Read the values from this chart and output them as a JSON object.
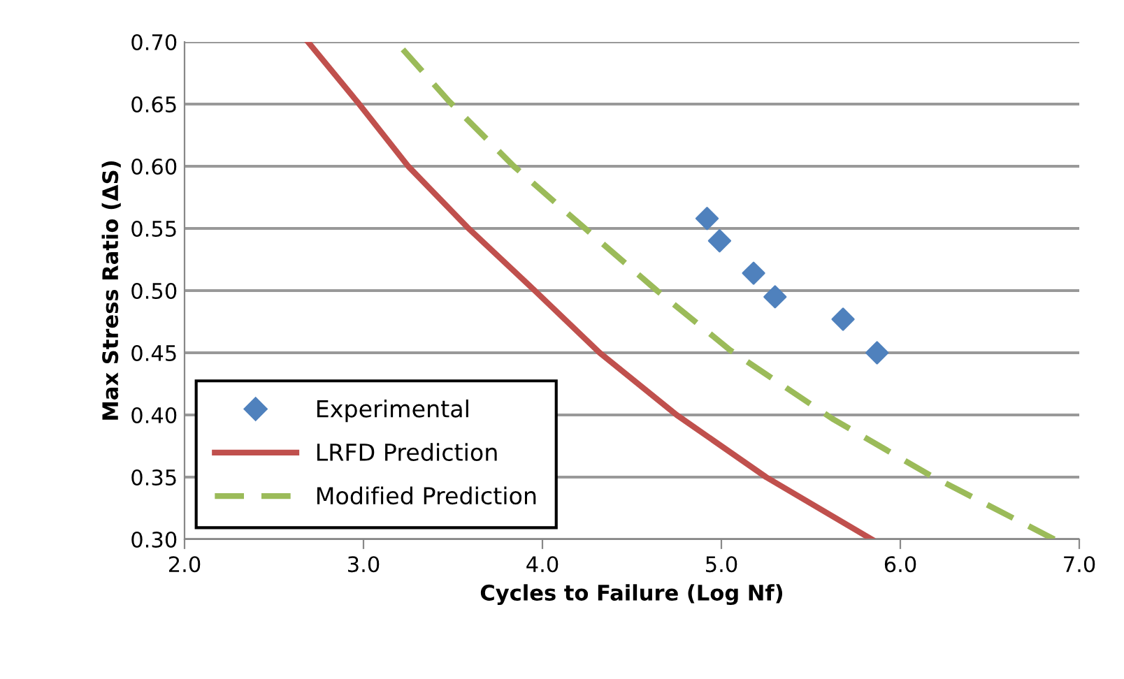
{
  "chart_data": {
    "type": "scatter",
    "xlabel": "Cycles to Failure (Log Nf)",
    "ylabel": "Max Stress Ratio (ΔS)",
    "xlim": [
      2.0,
      7.0
    ],
    "xticks": [
      {
        "value": 2,
        "label": "2.0"
      },
      {
        "value": 3,
        "label": "3.0"
      },
      {
        "value": 4,
        "label": "4.0"
      },
      {
        "value": 5,
        "label": "5.0"
      },
      {
        "value": 6,
        "label": "6.0"
      },
      {
        "value": 7,
        "label": "7.0"
      }
    ],
    "ylim": [
      0.3,
      0.7
    ],
    "yticks": [
      {
        "value": 0.3,
        "label": "0.30"
      },
      {
        "value": 0.35,
        "label": "0.35"
      },
      {
        "value": 0.4,
        "label": "0.40"
      },
      {
        "value": 0.45,
        "label": "0.45"
      },
      {
        "value": 0.5,
        "label": "0.50"
      },
      {
        "value": 0.55,
        "label": "0.55"
      },
      {
        "value": 0.6,
        "label": "0.60"
      },
      {
        "value": 0.65,
        "label": "0.65"
      },
      {
        "value": 0.7,
        "label": "0.70"
      }
    ],
    "grid": "y",
    "legend": "bottom left",
    "series": [
      {
        "name": "Experimental",
        "marker": "diamond",
        "color": "#4f81bd",
        "x": [
          4.92,
          4.99,
          5.18,
          5.3,
          5.68,
          5.87
        ],
        "values": [
          0.558,
          0.54,
          0.514,
          0.495,
          0.477,
          0.45
        ]
      },
      {
        "name": "LRFD Prediction",
        "type": "line",
        "line_style": "solid",
        "marker": "none",
        "color": "#c0504d",
        "x": [
          2.69,
          2.97,
          3.25,
          3.58,
          3.95,
          4.32,
          4.75,
          5.25,
          5.84
        ],
        "values": [
          0.7,
          0.651,
          0.6,
          0.551,
          0.501,
          0.45,
          0.4,
          0.35,
          0.3
        ]
      },
      {
        "name": "Modified Prediction",
        "type": "line",
        "line_style": "dashed",
        "marker": "none",
        "color": "#9bbb59",
        "x": [
          3.22,
          3.48,
          3.84,
          4.23,
          4.64,
          5.05,
          5.62,
          6.16,
          6.86
        ],
        "values": [
          0.694,
          0.652,
          0.6,
          0.551,
          0.5,
          0.452,
          0.397,
          0.352,
          0.3
        ]
      }
    ]
  }
}
